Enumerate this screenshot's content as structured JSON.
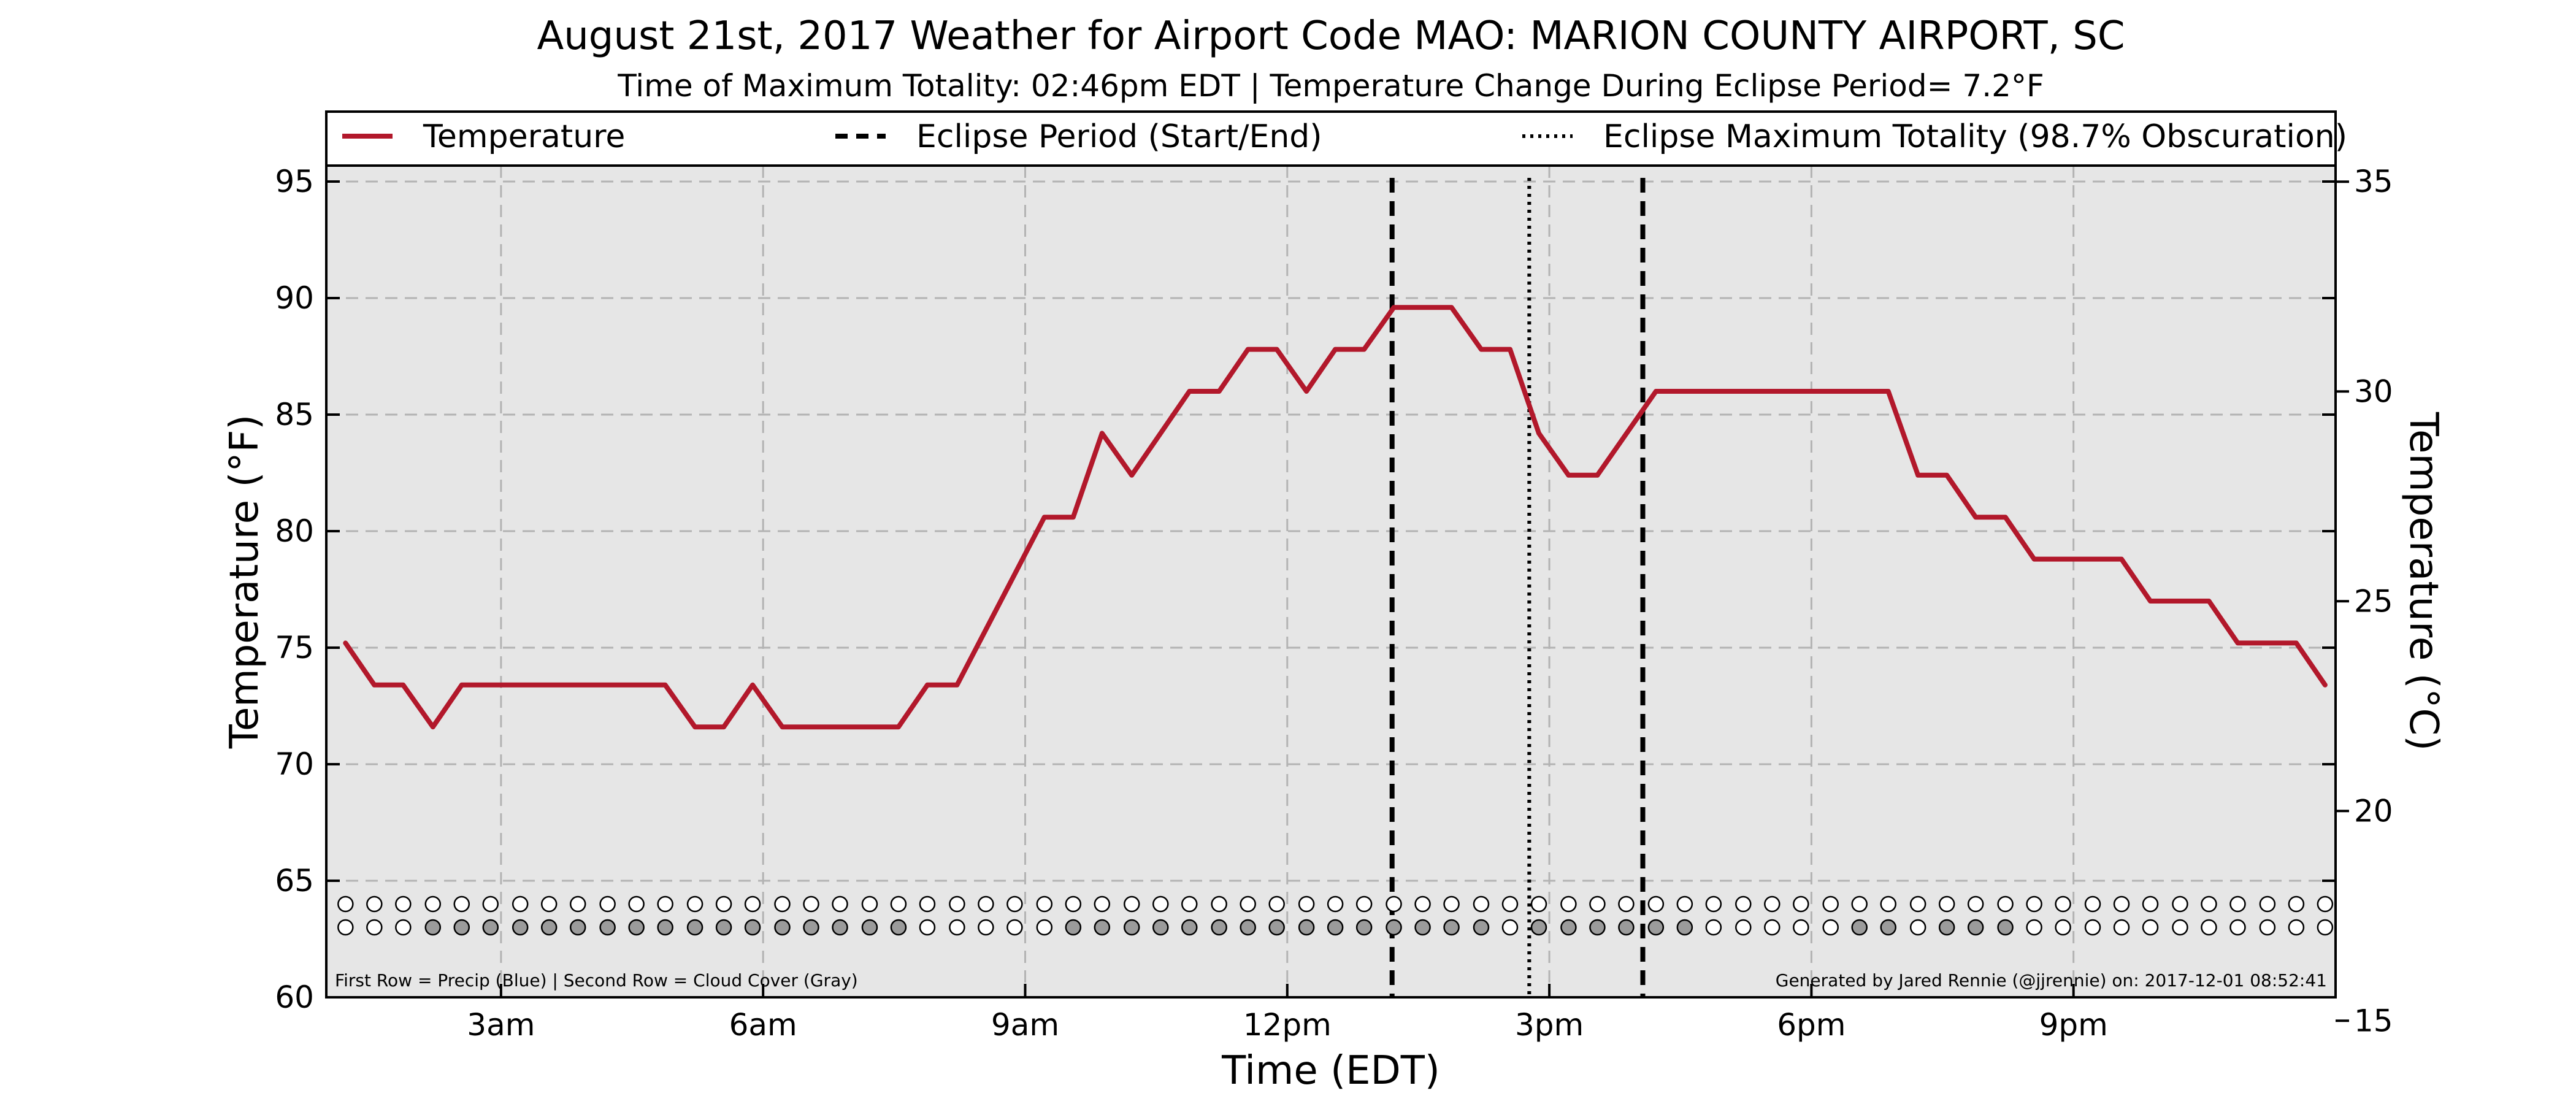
{
  "chart_data": {
    "type": "line",
    "title": "August 21st, 2017 Weather for Airport Code MAO: MARION COUNTY AIRPORT, SC",
    "subtitle": "Time of Maximum Totality: 02:46pm EDT | Temperature Change During Eclipse Period= 7.2$^\\circ$F",
    "subtitle_display": "Time of Maximum Totality: 02:46pm EDT | Temperature Change During Eclipse Period= 7.2°F",
    "xlabel": "Time (EDT)",
    "ylabel": "Temperature ($^\\circ$F)",
    "ylabel_display": "Temperature (°F)",
    "ylabel_right_display": "Temperature (°C)",
    "xlim": [
      1.0,
      24.0
    ],
    "ylim": [
      60,
      98
    ],
    "ylim_right": [
      15.56,
      36.67
    ],
    "xticks": [
      {
        "x": 3,
        "label": "3am"
      },
      {
        "x": 6,
        "label": "6am"
      },
      {
        "x": 9,
        "label": "9am"
      },
      {
        "x": 12,
        "label": "12pm"
      },
      {
        "x": 15,
        "label": "3pm"
      },
      {
        "x": 18,
        "label": "6pm"
      },
      {
        "x": 21,
        "label": "9pm"
      }
    ],
    "yticks": [
      60,
      65,
      70,
      75,
      80,
      85,
      90,
      95
    ],
    "yticks_right": [
      15,
      20,
      25,
      30,
      35
    ],
    "grid": true,
    "legend": {
      "placement": "top",
      "entries": [
        {
          "label": "Temperature",
          "style": "solid",
          "color": "#b2182b"
        },
        {
          "label": "Eclipse Period (Start/End)",
          "style": "dashed",
          "color": "#000000"
        },
        {
          "label": "Eclipse Maximum Totality (98.7% Obscuration)",
          "style": "dotted",
          "color": "#000000"
        }
      ]
    },
    "series": [
      {
        "name": "Temperature",
        "color": "#b2182b",
        "points": [
          [
            1.22,
            75.2
          ],
          [
            1.55,
            73.4
          ],
          [
            1.88,
            73.4
          ],
          [
            2.22,
            71.6
          ],
          [
            2.55,
            73.4
          ],
          [
            4.88,
            73.4
          ],
          [
            5.22,
            71.6
          ],
          [
            5.55,
            71.6
          ],
          [
            5.88,
            73.4
          ],
          [
            6.22,
            71.6
          ],
          [
            7.55,
            71.6
          ],
          [
            7.88,
            73.4
          ],
          [
            8.22,
            73.4
          ],
          [
            9.22,
            80.6
          ],
          [
            9.55,
            80.6
          ],
          [
            9.88,
            84.2
          ],
          [
            10.22,
            82.4
          ],
          [
            10.88,
            86.0
          ],
          [
            11.22,
            86.0
          ],
          [
            11.55,
            87.8
          ],
          [
            11.88,
            87.8
          ],
          [
            12.22,
            86.0
          ],
          [
            12.55,
            87.8
          ],
          [
            12.88,
            87.8
          ],
          [
            13.22,
            89.6
          ],
          [
            13.55,
            89.6
          ],
          [
            13.88,
            89.6
          ],
          [
            14.22,
            87.8
          ],
          [
            14.55,
            87.8
          ],
          [
            14.88,
            84.2
          ],
          [
            15.22,
            82.4
          ],
          [
            15.55,
            82.4
          ],
          [
            16.22,
            86.0
          ],
          [
            18.88,
            86.0
          ],
          [
            19.22,
            82.4
          ],
          [
            19.55,
            82.4
          ],
          [
            19.88,
            80.6
          ],
          [
            20.22,
            80.6
          ],
          [
            20.55,
            78.8
          ],
          [
            21.55,
            78.8
          ],
          [
            21.88,
            77.0
          ],
          [
            22.55,
            77.0
          ],
          [
            22.88,
            75.2
          ],
          [
            23.55,
            75.2
          ],
          [
            23.88,
            73.4
          ]
        ]
      }
    ],
    "eclipse_period": {
      "start": 13.2,
      "end": 16.07
    },
    "max_totality": 14.77,
    "observation_rows": {
      "times": [
        1.22,
        1.55,
        1.88,
        2.22,
        2.55,
        2.88,
        3.22,
        3.55,
        3.88,
        4.22,
        4.55,
        4.88,
        5.22,
        5.55,
        5.88,
        6.22,
        6.55,
        6.88,
        7.22,
        7.55,
        7.88,
        8.22,
        8.55,
        8.88,
        9.22,
        9.55,
        9.88,
        10.22,
        10.55,
        10.88,
        11.22,
        11.55,
        11.88,
        12.22,
        12.55,
        12.88,
        13.22,
        13.55,
        13.88,
        14.22,
        14.55,
        14.88,
        15.22,
        15.55,
        15.88,
        16.22,
        16.55,
        16.88,
        17.22,
        17.55,
        17.88,
        18.22,
        18.55,
        18.88,
        19.22,
        19.55,
        19.88,
        20.22,
        20.55,
        20.88,
        21.22,
        21.55,
        21.88,
        22.22,
        22.55,
        22.88,
        23.22,
        23.55,
        23.88
      ],
      "precip_y": 64.0,
      "cloud_y": 63.0,
      "precip": [
        0,
        0,
        0,
        0,
        0,
        0,
        0,
        0,
        0,
        0,
        0,
        0,
        0,
        0,
        0,
        0,
        0,
        0,
        0,
        0,
        0,
        0,
        0,
        0,
        0,
        0,
        0,
        0,
        0,
        0,
        0,
        0,
        0,
        0,
        0,
        0,
        0,
        0,
        0,
        0,
        0,
        0,
        0,
        0,
        0,
        0,
        0,
        0,
        0,
        0,
        0,
        0,
        0,
        0,
        0,
        0,
        0,
        0,
        0,
        0,
        0,
        0,
        0,
        0,
        0,
        0,
        0,
        0,
        0
      ],
      "cloud": [
        0,
        0,
        0,
        1,
        1,
        1,
        1,
        1,
        1,
        1,
        1,
        1,
        1,
        1,
        1,
        1,
        1,
        1,
        1,
        1,
        0,
        0,
        0,
        0,
        0,
        1,
        1,
        1,
        1,
        1,
        1,
        1,
        1,
        1,
        1,
        1,
        1,
        1,
        1,
        1,
        0,
        1,
        1,
        1,
        1,
        1,
        1,
        0,
        0,
        0,
        0,
        0,
        1,
        1,
        0,
        1,
        1,
        1,
        0,
        0,
        0,
        0,
        0,
        0,
        0,
        0,
        0,
        0,
        0
      ],
      "precip_color": "#3b78c4",
      "cloud_color": "#9b9b9b"
    },
    "footnote_left": "First Row = Precip (Blue) | Second Row = Cloud Cover (Gray)",
    "footnote_right": "Generated by Jared Rennie (@jjrennie) on: 2017-12-01 08:52:41"
  },
  "colors": {
    "plot_background": "#e6e6e6",
    "grid": "#b3b3b3",
    "temperature_line": "#b2182b"
  }
}
